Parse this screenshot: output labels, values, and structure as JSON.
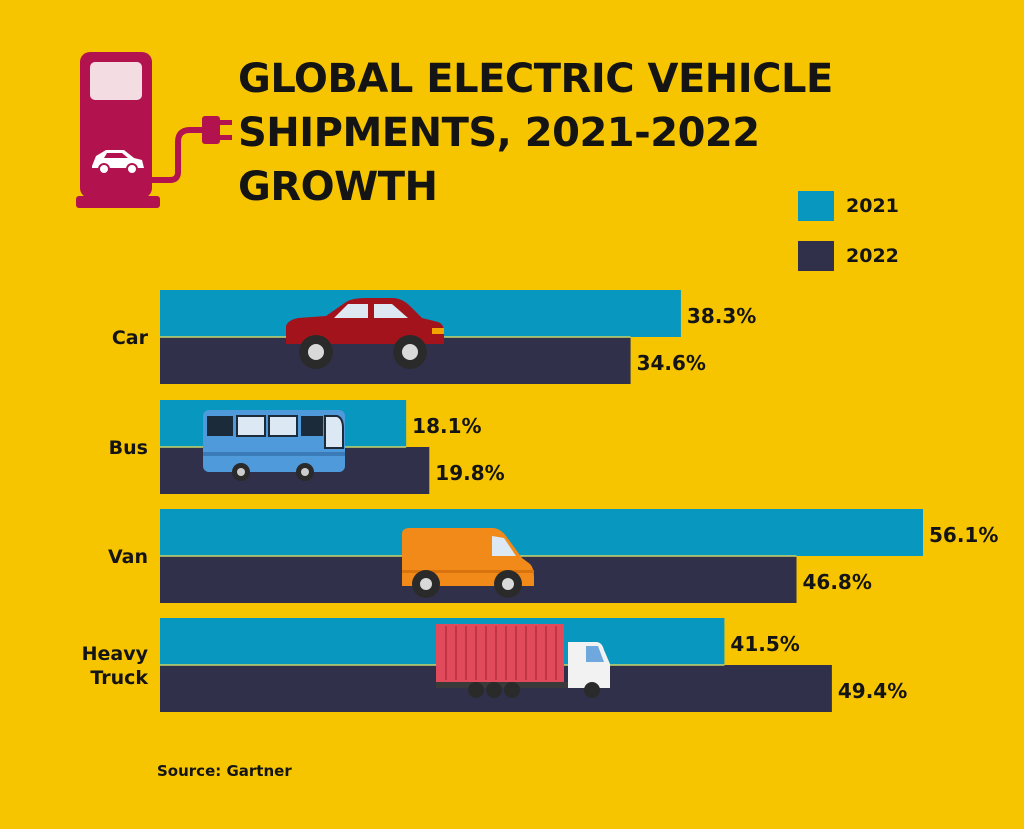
{
  "title_lines": [
    "GLOBAL ELECTRIC VEHICLE",
    "SHIPMENTS, 2021-2022",
    "GROWTH"
  ],
  "source": "Source: Gartner",
  "colors": {
    "background": "#F6C500",
    "series_2021": "#0898BF",
    "series_2022": "#31304A",
    "icon": "#B2124E"
  },
  "legend": [
    {
      "label": "2021",
      "color": "#0898BF"
    },
    {
      "label": "2022",
      "color": "#31304A"
    }
  ],
  "chart_data": {
    "type": "bar",
    "orientation": "horizontal",
    "title": "GLOBAL ELECTRIC VEHICLE SHIPMENTS, 2021-2022 GROWTH",
    "categories": [
      [
        "Car"
      ],
      [
        "Bus"
      ],
      [
        "Van"
      ],
      [
        "Heavy",
        "Truck"
      ]
    ],
    "series": [
      {
        "name": "2021",
        "values": [
          38.3,
          18.1,
          56.1,
          41.5
        ],
        "labels": [
          "38.3%",
          "18.1%",
          "56.1%",
          "41.5%"
        ]
      },
      {
        "name": "2022",
        "values": [
          34.6,
          19.8,
          46.8,
          49.4
        ],
        "labels": [
          "34.6%",
          "19.8%",
          "46.8%",
          "49.4%"
        ]
      }
    ],
    "category_icons": [
      "car-icon",
      "bus-icon",
      "van-icon",
      "truck-icon"
    ],
    "xlim": [
      0,
      56.1
    ],
    "legend_position": "top-right",
    "grid": false,
    "source": "Gartner"
  }
}
